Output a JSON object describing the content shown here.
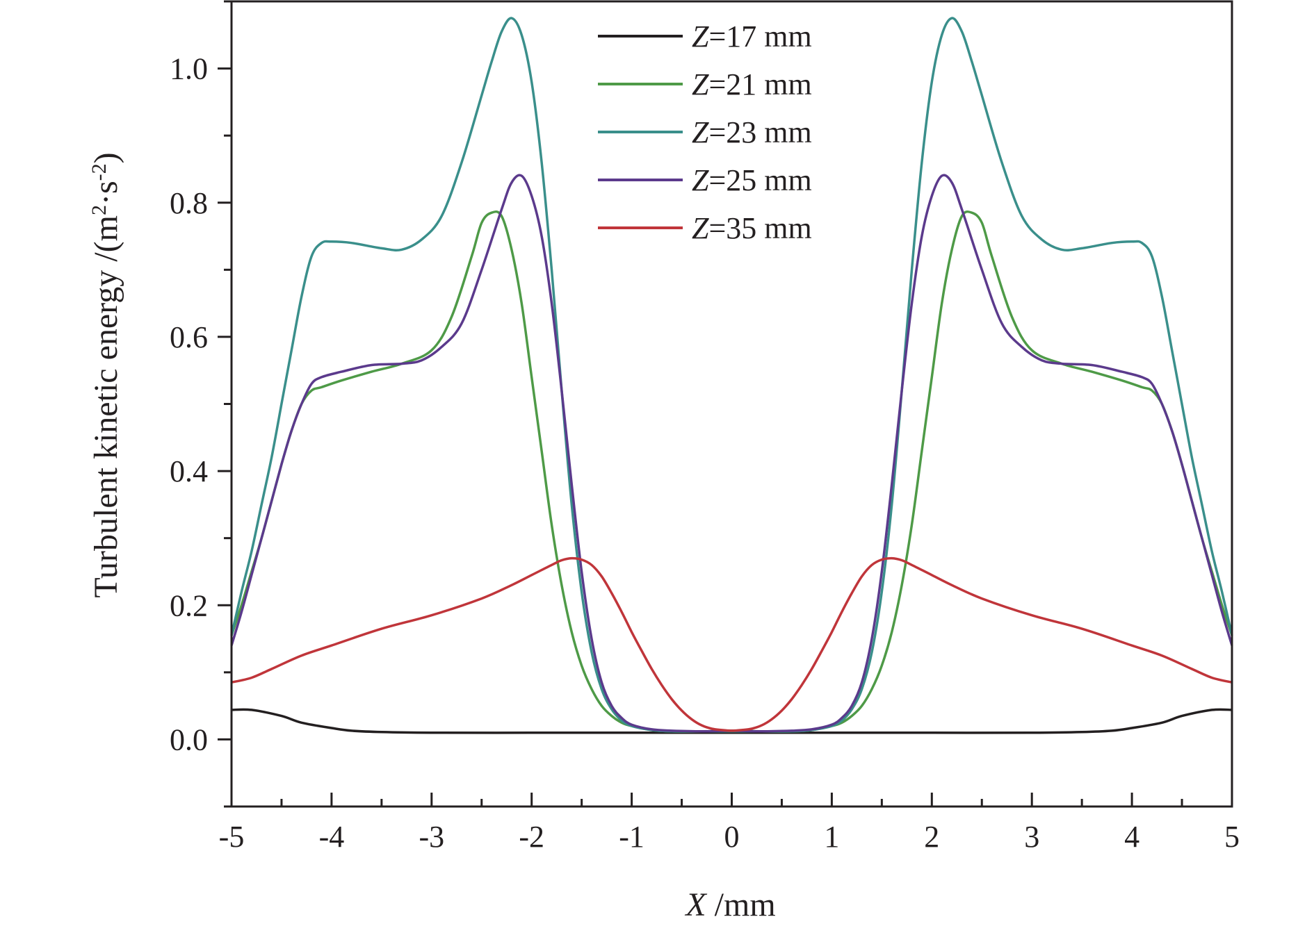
{
  "chart_data": {
    "type": "line",
    "xlabel_var": "X",
    "xlabel_unit": " /mm",
    "ylabel": "Turbulent kinetic energy /(m",
    "ylabel_sup1": "2",
    "ylabel_mid": "·s",
    "ylabel_sup2": "-2",
    "ylabel_end": ")",
    "xlim": [
      -5,
      5
    ],
    "ylim": [
      -0.1,
      1.1
    ],
    "xticks": [
      -5,
      -4,
      -3,
      -2,
      -1,
      0,
      1,
      2,
      3,
      4,
      5
    ],
    "xtick_labels": [
      "-5",
      "-4",
      "-3",
      "-2",
      "-1",
      "0",
      "1",
      "2",
      "3",
      "4",
      "5"
    ],
    "yticks": [
      0.0,
      0.2,
      0.4,
      0.6,
      0.8,
      1.0
    ],
    "ytick_labels": [
      "0.0",
      "0.2",
      "0.4",
      "0.6",
      "0.8",
      "1.0"
    ],
    "grid": false,
    "legend_position": "top-center",
    "symmetric": true,
    "series": [
      {
        "name_var": "Z",
        "name_rest": "=17 mm",
        "color": "#231f20",
        "x": [
          0,
          0.5,
          1.0,
          2.0,
          3.0,
          3.5,
          3.8,
          4.0,
          4.3,
          4.5,
          4.8,
          5.0
        ],
        "y": [
          0.01,
          0.01,
          0.01,
          0.01,
          0.01,
          0.011,
          0.013,
          0.017,
          0.025,
          0.035,
          0.044,
          0.044
        ]
      },
      {
        "name_var": "Z",
        "name_rest": "=21 mm",
        "color": "#4e9a47",
        "x": [
          0,
          0.3,
          0.6,
          0.8,
          1.0,
          1.1,
          1.2,
          1.3,
          1.4,
          1.5,
          1.6,
          1.7,
          1.8,
          1.9,
          2.0,
          2.1,
          2.2,
          2.3,
          2.4,
          2.5,
          2.6,
          2.8,
          3.0,
          3.3,
          3.6,
          3.9,
          4.1,
          4.2,
          4.3,
          4.4,
          4.5,
          4.6,
          4.7,
          4.8,
          4.9,
          5.0
        ],
        "y": [
          0.013,
          0.012,
          0.012,
          0.014,
          0.02,
          0.025,
          0.035,
          0.05,
          0.075,
          0.11,
          0.16,
          0.23,
          0.32,
          0.43,
          0.54,
          0.65,
          0.73,
          0.78,
          0.785,
          0.77,
          0.72,
          0.63,
          0.58,
          0.56,
          0.548,
          0.535,
          0.525,
          0.52,
          0.5,
          0.46,
          0.41,
          0.355,
          0.3,
          0.25,
          0.2,
          0.155
        ]
      },
      {
        "name_var": "Z",
        "name_rest": "=23 mm",
        "color": "#3a8f8b",
        "x": [
          0,
          0.3,
          0.6,
          0.8,
          1.0,
          1.1,
          1.2,
          1.3,
          1.4,
          1.5,
          1.6,
          1.7,
          1.8,
          1.9,
          2.0,
          2.1,
          2.2,
          2.3,
          2.4,
          2.5,
          2.7,
          2.9,
          3.1,
          3.3,
          3.5,
          3.8,
          4.0,
          4.1,
          4.2,
          4.3,
          4.4,
          4.5,
          4.6,
          4.7,
          4.8,
          4.9,
          5.0
        ],
        "y": [
          0.012,
          0.012,
          0.012,
          0.014,
          0.02,
          0.028,
          0.045,
          0.075,
          0.13,
          0.22,
          0.35,
          0.52,
          0.7,
          0.86,
          0.98,
          1.05,
          1.075,
          1.055,
          1.01,
          0.96,
          0.86,
          0.78,
          0.745,
          0.73,
          0.732,
          0.74,
          0.742,
          0.74,
          0.72,
          0.66,
          0.58,
          0.5,
          0.42,
          0.35,
          0.28,
          0.22,
          0.155
        ]
      },
      {
        "name_var": "Z",
        "name_rest": "=25 mm",
        "color": "#5b3a8c",
        "x": [
          0,
          0.3,
          0.6,
          0.8,
          1.0,
          1.1,
          1.2,
          1.3,
          1.4,
          1.5,
          1.6,
          1.7,
          1.8,
          1.9,
          2.0,
          2.1,
          2.2,
          2.3,
          2.5,
          2.7,
          2.9,
          3.1,
          3.3,
          3.6,
          3.9,
          4.1,
          4.2,
          4.3,
          4.4,
          4.5,
          4.6,
          4.7,
          4.8,
          4.9,
          5.0
        ],
        "y": [
          0.013,
          0.012,
          0.013,
          0.015,
          0.022,
          0.032,
          0.05,
          0.085,
          0.15,
          0.25,
          0.38,
          0.52,
          0.65,
          0.75,
          0.81,
          0.84,
          0.83,
          0.79,
          0.7,
          0.62,
          0.585,
          0.565,
          0.56,
          0.558,
          0.548,
          0.54,
          0.53,
          0.5,
          0.46,
          0.41,
          0.355,
          0.3,
          0.245,
          0.19,
          0.14
        ]
      },
      {
        "name_var": "Z",
        "name_rest": "=35 mm",
        "color": "#c0353a",
        "x": [
          0,
          0.1,
          0.2,
          0.3,
          0.4,
          0.5,
          0.6,
          0.7,
          0.8,
          0.9,
          1.0,
          1.1,
          1.2,
          1.3,
          1.4,
          1.5,
          1.6,
          1.7,
          1.8,
          2.0,
          2.2,
          2.5,
          3.0,
          3.5,
          4.0,
          4.3,
          4.6,
          4.8,
          5.0
        ],
        "y": [
          0.013,
          0.014,
          0.016,
          0.021,
          0.03,
          0.043,
          0.06,
          0.081,
          0.105,
          0.132,
          0.16,
          0.19,
          0.218,
          0.243,
          0.26,
          0.268,
          0.27,
          0.267,
          0.26,
          0.245,
          0.23,
          0.21,
          0.185,
          0.165,
          0.14,
          0.125,
          0.105,
          0.092,
          0.085
        ]
      }
    ]
  }
}
